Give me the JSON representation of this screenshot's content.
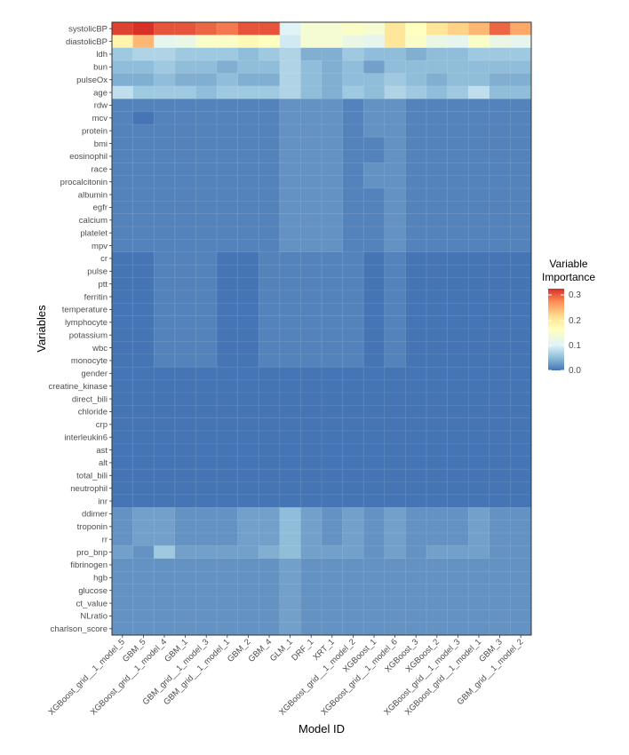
{
  "chart_data": {
    "type": "heatmap",
    "xlabel": "Model ID",
    "ylabel": "Variables",
    "legend": {
      "title_lines": [
        "Variable",
        "Importance"
      ],
      "ticks": [
        "0.3",
        "0.2",
        "0.1",
        "0.0"
      ],
      "range": [
        0,
        0.32
      ],
      "placement": "right",
      "colors": [
        "#4575b4",
        "#91bfdb",
        "#e0f3f8",
        "#ffffbf",
        "#fee090",
        "#fc8d59",
        "#d73027"
      ]
    },
    "models": [
      "XGBoost_grid__1_model_5",
      "GBM_5",
      "XGBoost_grid__1_model_4",
      "GBM_1",
      "GBM_grid__1_model_3",
      "GBM_grid__1_model_1",
      "GBM_2",
      "GBM_4",
      "GLM_1",
      "DRF_1",
      "XRT_1",
      "XGBoost_grid__1_model_2",
      "XGBoost_1",
      "XGBoost_grid__1_model_6",
      "XGBoost_3",
      "XGBoost_2",
      "XGBoost_grid__1_model_3",
      "XGBoost_grid__1_model_1",
      "GBM_3",
      "GBM_grid__1_model_2"
    ],
    "variables": [
      "systolicBP",
      "diastolicBP",
      "ldh",
      "bun",
      "pulseOx",
      "age",
      "rdw",
      "mcv",
      "protein",
      "bmi",
      "eosinophil",
      "race",
      "procalcitonin",
      "albumin",
      "egfr",
      "calcium",
      "platelet",
      "mpv",
      "cr",
      "pulse",
      "ptt",
      "ferritin",
      "temperature",
      "lymphocyte",
      "potassium",
      "wbc",
      "monocyte",
      "gender",
      "creatine_kinase",
      "direct_bili",
      "chloride",
      "crp",
      "interleukin6",
      "ast",
      "alt",
      "total_bili",
      "neutrophil",
      "inr",
      "ddimer",
      "troponin",
      "rr",
      "pro_bnp",
      "fibrinogen",
      "hgb",
      "glucose",
      "ct_value",
      "NLratio",
      "charlson_score"
    ],
    "values": [
      [
        0.31,
        0.32,
        0.3,
        0.3,
        0.29,
        0.28,
        0.3,
        0.3,
        0.1,
        0.14,
        0.14,
        0.15,
        0.14,
        0.2,
        0.16,
        0.2,
        0.22,
        0.24,
        0.29,
        0.25
      ],
      [
        0.18,
        0.24,
        0.11,
        0.12,
        0.15,
        0.15,
        0.17,
        0.16,
        0.09,
        0.14,
        0.14,
        0.12,
        0.11,
        0.2,
        0.15,
        0.12,
        0.11,
        0.15,
        0.12,
        0.11
      ],
      [
        0.06,
        0.07,
        0.07,
        0.06,
        0.06,
        0.06,
        0.05,
        0.06,
        0.07,
        0.04,
        0.04,
        0.06,
        0.05,
        0.05,
        0.04,
        0.05,
        0.05,
        0.06,
        0.06,
        0.06
      ],
      [
        0.05,
        0.05,
        0.06,
        0.05,
        0.05,
        0.04,
        0.05,
        0.05,
        0.07,
        0.05,
        0.04,
        0.05,
        0.03,
        0.05,
        0.05,
        0.05,
        0.05,
        0.05,
        0.05,
        0.05
      ],
      [
        0.04,
        0.04,
        0.05,
        0.04,
        0.04,
        0.05,
        0.04,
        0.04,
        0.07,
        0.05,
        0.04,
        0.05,
        0.05,
        0.06,
        0.05,
        0.04,
        0.05,
        0.05,
        0.04,
        0.04
      ],
      [
        0.08,
        0.06,
        0.06,
        0.06,
        0.05,
        0.06,
        0.06,
        0.06,
        0.07,
        0.05,
        0.04,
        0.06,
        0.05,
        0.07,
        0.06,
        0.05,
        0.06,
        0.08,
        0.05,
        0.05
      ],
      [
        0.01,
        0.01,
        0.01,
        0.01,
        0.01,
        0.01,
        0.01,
        0.01,
        0.02,
        0.02,
        0.02,
        0.01,
        0.02,
        0.02,
        0.01,
        0.01,
        0.01,
        0.01,
        0.01,
        0.01
      ],
      [
        0.01,
        0.0,
        0.01,
        0.01,
        0.01,
        0.01,
        0.01,
        0.01,
        0.02,
        0.02,
        0.02,
        0.01,
        0.02,
        0.02,
        0.01,
        0.01,
        0.01,
        0.01,
        0.01,
        0.01
      ],
      [
        0.01,
        0.01,
        0.01,
        0.01,
        0.01,
        0.01,
        0.01,
        0.01,
        0.02,
        0.02,
        0.02,
        0.01,
        0.02,
        0.02,
        0.01,
        0.01,
        0.01,
        0.01,
        0.01,
        0.01
      ],
      [
        0.01,
        0.01,
        0.01,
        0.01,
        0.01,
        0.01,
        0.01,
        0.01,
        0.02,
        0.02,
        0.02,
        0.01,
        0.01,
        0.02,
        0.01,
        0.01,
        0.01,
        0.01,
        0.01,
        0.01
      ],
      [
        0.01,
        0.01,
        0.01,
        0.01,
        0.01,
        0.01,
        0.01,
        0.01,
        0.02,
        0.02,
        0.02,
        0.01,
        0.01,
        0.02,
        0.01,
        0.01,
        0.01,
        0.01,
        0.01,
        0.01
      ],
      [
        0.01,
        0.01,
        0.01,
        0.01,
        0.01,
        0.01,
        0.01,
        0.01,
        0.02,
        0.02,
        0.02,
        0.01,
        0.02,
        0.02,
        0.01,
        0.01,
        0.01,
        0.01,
        0.01,
        0.01
      ],
      [
        0.01,
        0.01,
        0.01,
        0.01,
        0.01,
        0.01,
        0.01,
        0.01,
        0.02,
        0.02,
        0.02,
        0.01,
        0.02,
        0.02,
        0.01,
        0.01,
        0.01,
        0.01,
        0.01,
        0.01
      ],
      [
        0.01,
        0.01,
        0.01,
        0.01,
        0.01,
        0.01,
        0.01,
        0.01,
        0.02,
        0.02,
        0.02,
        0.01,
        0.01,
        0.02,
        0.01,
        0.01,
        0.01,
        0.01,
        0.01,
        0.01
      ],
      [
        0.01,
        0.01,
        0.01,
        0.01,
        0.01,
        0.01,
        0.01,
        0.01,
        0.02,
        0.02,
        0.02,
        0.01,
        0.01,
        0.02,
        0.01,
        0.01,
        0.01,
        0.01,
        0.01,
        0.01
      ],
      [
        0.01,
        0.01,
        0.01,
        0.01,
        0.01,
        0.01,
        0.01,
        0.01,
        0.02,
        0.02,
        0.02,
        0.01,
        0.01,
        0.02,
        0.01,
        0.01,
        0.01,
        0.01,
        0.01,
        0.01
      ],
      [
        0.01,
        0.01,
        0.01,
        0.01,
        0.01,
        0.01,
        0.01,
        0.01,
        0.02,
        0.02,
        0.02,
        0.01,
        0.01,
        0.02,
        0.01,
        0.01,
        0.01,
        0.01,
        0.01,
        0.01
      ],
      [
        0.01,
        0.01,
        0.01,
        0.01,
        0.01,
        0.01,
        0.01,
        0.01,
        0.02,
        0.02,
        0.02,
        0.01,
        0.01,
        0.02,
        0.01,
        0.01,
        0.01,
        0.01,
        0.01,
        0.01
      ],
      [
        0.0,
        0.0,
        0.01,
        0.01,
        0.01,
        0.0,
        0.0,
        0.01,
        0.01,
        0.01,
        0.01,
        0.01,
        0.0,
        0.01,
        0.0,
        0.0,
        0.0,
        0.0,
        0.0,
        0.0
      ],
      [
        0.0,
        0.0,
        0.01,
        0.01,
        0.01,
        0.0,
        0.0,
        0.01,
        0.01,
        0.01,
        0.01,
        0.01,
        0.0,
        0.01,
        0.0,
        0.0,
        0.0,
        0.0,
        0.0,
        0.0
      ],
      [
        0.0,
        0.0,
        0.01,
        0.01,
        0.01,
        0.0,
        0.0,
        0.01,
        0.01,
        0.01,
        0.01,
        0.01,
        0.0,
        0.01,
        0.0,
        0.0,
        0.0,
        0.0,
        0.0,
        0.0
      ],
      [
        0.0,
        0.0,
        0.01,
        0.01,
        0.01,
        0.0,
        0.0,
        0.01,
        0.01,
        0.01,
        0.01,
        0.01,
        0.0,
        0.01,
        0.0,
        0.0,
        0.0,
        0.0,
        0.0,
        0.0
      ],
      [
        0.0,
        0.0,
        0.01,
        0.01,
        0.01,
        0.0,
        0.0,
        0.01,
        0.01,
        0.01,
        0.01,
        0.01,
        0.0,
        0.01,
        0.0,
        0.0,
        0.0,
        0.0,
        0.0,
        0.0
      ],
      [
        0.0,
        0.0,
        0.01,
        0.01,
        0.01,
        0.0,
        0.0,
        0.01,
        0.01,
        0.01,
        0.01,
        0.01,
        0.0,
        0.01,
        0.0,
        0.0,
        0.0,
        0.0,
        0.0,
        0.0
      ],
      [
        0.0,
        0.0,
        0.01,
        0.01,
        0.01,
        0.0,
        0.0,
        0.01,
        0.01,
        0.01,
        0.01,
        0.01,
        0.0,
        0.01,
        0.0,
        0.0,
        0.0,
        0.0,
        0.0,
        0.0
      ],
      [
        0.0,
        0.0,
        0.01,
        0.01,
        0.01,
        0.0,
        0.0,
        0.01,
        0.01,
        0.01,
        0.01,
        0.01,
        0.0,
        0.01,
        0.0,
        0.0,
        0.0,
        0.0,
        0.0,
        0.0
      ],
      [
        0.0,
        0.0,
        0.01,
        0.01,
        0.01,
        0.0,
        0.0,
        0.01,
        0.01,
        0.01,
        0.01,
        0.01,
        0.0,
        0.01,
        0.0,
        0.0,
        0.0,
        0.0,
        0.0,
        0.0
      ],
      [
        0.0,
        0.0,
        0.0,
        0.0,
        0.0,
        0.0,
        0.0,
        0.0,
        0.0,
        0.0,
        0.0,
        0.0,
        0.0,
        0.0,
        0.0,
        0.0,
        0.0,
        0.0,
        0.0,
        0.0
      ],
      [
        0.0,
        0.0,
        0.0,
        0.0,
        0.0,
        0.0,
        0.0,
        0.0,
        0.0,
        0.0,
        0.0,
        0.0,
        0.0,
        0.0,
        0.0,
        0.0,
        0.0,
        0.0,
        0.0,
        0.0
      ],
      [
        0.0,
        0.0,
        0.0,
        0.0,
        0.0,
        0.0,
        0.0,
        0.0,
        0.0,
        0.0,
        0.0,
        0.0,
        0.0,
        0.0,
        0.0,
        0.0,
        0.0,
        0.0,
        0.0,
        0.0
      ],
      [
        0.0,
        0.0,
        0.0,
        0.0,
        0.0,
        0.0,
        0.0,
        0.0,
        0.0,
        0.0,
        0.0,
        0.0,
        0.0,
        0.0,
        0.0,
        0.0,
        0.0,
        0.0,
        0.0,
        0.0
      ],
      [
        0.0,
        0.0,
        0.0,
        0.0,
        0.0,
        0.0,
        0.0,
        0.0,
        0.0,
        0.0,
        0.0,
        0.0,
        0.0,
        0.0,
        0.0,
        0.0,
        0.0,
        0.0,
        0.0,
        0.0
      ],
      [
        0.0,
        0.0,
        0.0,
        0.0,
        0.0,
        0.0,
        0.0,
        0.0,
        0.0,
        0.0,
        0.0,
        0.0,
        0.0,
        0.0,
        0.0,
        0.0,
        0.0,
        0.0,
        0.0,
        0.0
      ],
      [
        0.0,
        0.0,
        0.0,
        0.0,
        0.0,
        0.0,
        0.0,
        0.0,
        0.0,
        0.0,
        0.0,
        0.0,
        0.0,
        0.0,
        0.0,
        0.0,
        0.0,
        0.0,
        0.0,
        0.0
      ],
      [
        0.0,
        0.0,
        0.0,
        0.0,
        0.0,
        0.0,
        0.0,
        0.0,
        0.0,
        0.0,
        0.0,
        0.0,
        0.0,
        0.0,
        0.0,
        0.0,
        0.0,
        0.0,
        0.0,
        0.0
      ],
      [
        0.0,
        0.0,
        0.0,
        0.0,
        0.0,
        0.0,
        0.0,
        0.0,
        0.0,
        0.0,
        0.0,
        0.0,
        0.0,
        0.0,
        0.0,
        0.0,
        0.0,
        0.0,
        0.0,
        0.0
      ],
      [
        0.0,
        0.0,
        0.0,
        0.0,
        0.0,
        0.0,
        0.0,
        0.0,
        0.0,
        0.0,
        0.0,
        0.0,
        0.0,
        0.0,
        0.0,
        0.0,
        0.0,
        0.0,
        0.0,
        0.0
      ],
      [
        0.0,
        0.0,
        0.0,
        0.0,
        0.0,
        0.0,
        0.0,
        0.0,
        0.0,
        0.0,
        0.0,
        0.0,
        0.0,
        0.0,
        0.0,
        0.0,
        0.0,
        0.0,
        0.0,
        0.0
      ],
      [
        0.02,
        0.03,
        0.03,
        0.02,
        0.02,
        0.02,
        0.03,
        0.03,
        0.05,
        0.03,
        0.02,
        0.03,
        0.02,
        0.03,
        0.02,
        0.02,
        0.02,
        0.03,
        0.02,
        0.02
      ],
      [
        0.02,
        0.03,
        0.03,
        0.02,
        0.02,
        0.02,
        0.03,
        0.03,
        0.05,
        0.03,
        0.02,
        0.03,
        0.02,
        0.03,
        0.02,
        0.02,
        0.02,
        0.03,
        0.02,
        0.02
      ],
      [
        0.02,
        0.03,
        0.03,
        0.02,
        0.02,
        0.02,
        0.03,
        0.03,
        0.05,
        0.03,
        0.02,
        0.03,
        0.02,
        0.03,
        0.02,
        0.02,
        0.02,
        0.03,
        0.02,
        0.02
      ],
      [
        0.03,
        0.02,
        0.06,
        0.03,
        0.03,
        0.03,
        0.03,
        0.04,
        0.05,
        0.03,
        0.03,
        0.03,
        0.02,
        0.03,
        0.02,
        0.03,
        0.03,
        0.03,
        0.02,
        0.02
      ],
      [
        0.02,
        0.02,
        0.02,
        0.02,
        0.02,
        0.02,
        0.02,
        0.02,
        0.03,
        0.02,
        0.02,
        0.02,
        0.02,
        0.02,
        0.02,
        0.02,
        0.02,
        0.02,
        0.02,
        0.02
      ],
      [
        0.02,
        0.02,
        0.02,
        0.02,
        0.02,
        0.02,
        0.02,
        0.02,
        0.03,
        0.02,
        0.02,
        0.02,
        0.02,
        0.02,
        0.02,
        0.02,
        0.02,
        0.02,
        0.02,
        0.02
      ],
      [
        0.02,
        0.02,
        0.02,
        0.02,
        0.02,
        0.02,
        0.02,
        0.02,
        0.03,
        0.02,
        0.02,
        0.02,
        0.02,
        0.02,
        0.02,
        0.02,
        0.02,
        0.02,
        0.02,
        0.02
      ],
      [
        0.02,
        0.02,
        0.02,
        0.02,
        0.02,
        0.02,
        0.02,
        0.02,
        0.03,
        0.02,
        0.02,
        0.02,
        0.02,
        0.02,
        0.02,
        0.02,
        0.02,
        0.02,
        0.02,
        0.02
      ],
      [
        0.02,
        0.02,
        0.02,
        0.02,
        0.02,
        0.02,
        0.02,
        0.02,
        0.03,
        0.02,
        0.02,
        0.02,
        0.02,
        0.02,
        0.02,
        0.02,
        0.02,
        0.02,
        0.02,
        0.02
      ],
      [
        0.02,
        0.02,
        0.02,
        0.02,
        0.02,
        0.02,
        0.02,
        0.02,
        0.03,
        0.02,
        0.02,
        0.02,
        0.02,
        0.02,
        0.02,
        0.02,
        0.02,
        0.02,
        0.02,
        0.02
      ]
    ]
  }
}
